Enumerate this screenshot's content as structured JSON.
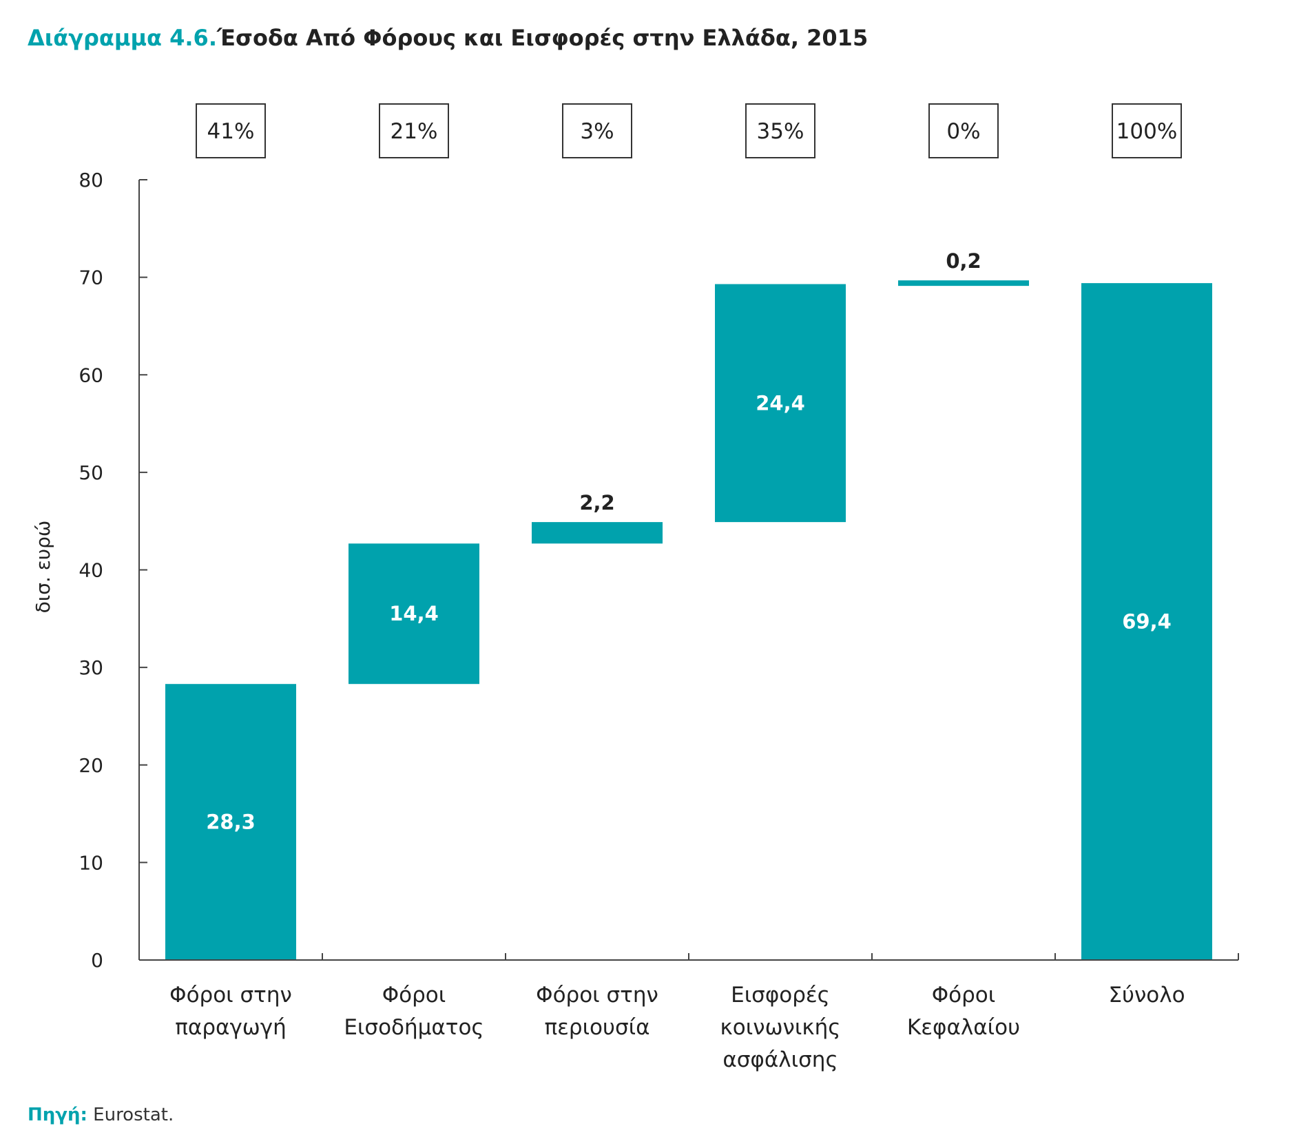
{
  "title": {
    "prefix": "Διάγραμμα 4.6.",
    "text": "Έσοδα Από Φόρους και Εισφορές στην Ελλάδα, 2015"
  },
  "source": {
    "label": "Πηγή:",
    "text": "Eurostat."
  },
  "colors": {
    "bar": "#00a2ad",
    "accent": "#00a2ad",
    "axis": "#444444",
    "text": "#222222"
  },
  "chart_data": {
    "type": "bar",
    "subtype": "waterfall",
    "ylabel": "δισ. ευρώ",
    "ylim": [
      0,
      80
    ],
    "yticks": [
      0,
      10,
      20,
      30,
      40,
      50,
      60,
      70,
      80
    ],
    "grid": false,
    "categories": [
      [
        "Φόροι στην",
        "παραγωγή"
      ],
      [
        "Φόροι",
        "Εισοδήματος"
      ],
      [
        "Φόροι στην",
        "περιουσία"
      ],
      [
        "Εισφορές",
        "κοινωνικής",
        "ασφάλισης"
      ],
      [
        "Φόροι",
        "Κεφαλαίου"
      ],
      [
        "Σύνολο"
      ]
    ],
    "values": [
      28.3,
      14.4,
      2.2,
      24.4,
      0.2,
      69.4
    ],
    "value_labels": [
      "28,3",
      "14,4",
      "2,2",
      "24,4",
      "0,2",
      "69,4"
    ],
    "is_total": [
      false,
      false,
      false,
      false,
      false,
      true
    ],
    "shares": [
      "41%",
      "21%",
      "3%",
      "35%",
      "0%",
      "100%"
    ]
  }
}
